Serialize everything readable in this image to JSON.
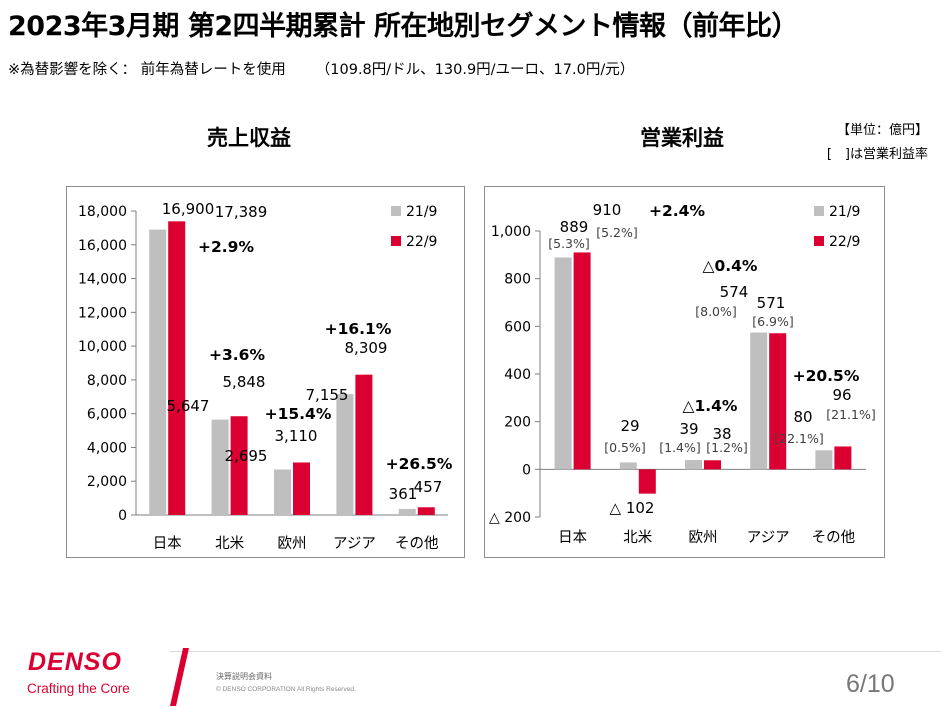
{
  "header": {
    "title": "2023年3月期 第2四半期累計 所在地別セグメント情報（前年比）",
    "subtitle": "※為替影響を除く：  前年為替レートを使用",
    "rates": "（109.8円/ドル、130.9円/ユーロ、17.0円/元）"
  },
  "unit_note": {
    "unit": "【単位：億円】",
    "bracket_note": "[　]は営業利益率"
  },
  "colors": {
    "prior": "#bfbfbf",
    "current": "#dc0032"
  },
  "chart_data": [
    {
      "type": "bar",
      "title": "売上収益",
      "categories": [
        "日本",
        "北米",
        "欧州",
        "アジア",
        "その他"
      ],
      "series": [
        {
          "name": "21/9",
          "values": [
            16900,
            5647,
            2695,
            7155,
            361
          ],
          "labels": [
            "16,900",
            "5,647",
            "2,695",
            "7,155",
            "361"
          ]
        },
        {
          "name": "22/9",
          "values": [
            17389,
            5848,
            3110,
            8309,
            457
          ],
          "labels": [
            "17,389",
            "5,848",
            "3,110",
            "8,309",
            "457"
          ]
        }
      ],
      "growth": [
        "+2.9%",
        "+3.6%",
        "+15.4%",
        "+16.1%",
        "+26.5%"
      ],
      "ylim": [
        0,
        18000
      ],
      "yticks": [
        0,
        2000,
        4000,
        6000,
        8000,
        10000,
        12000,
        14000,
        16000,
        18000
      ],
      "ytick_labels": [
        "0",
        "2,000",
        "4,000",
        "6,000",
        "8,000",
        "10,000",
        "12,000",
        "14,000",
        "16,000",
        "18,000"
      ],
      "legend_position": "top-right"
    },
    {
      "type": "bar",
      "title": "営業利益",
      "categories": [
        "日本",
        "北米",
        "欧州",
        "アジア",
        "その他"
      ],
      "series": [
        {
          "name": "21/9",
          "values": [
            889,
            29,
            39,
            574,
            80
          ],
          "labels": [
            "889",
            "29",
            "39",
            "574",
            "80"
          ],
          "margins": [
            "[5.3%]",
            "[0.5%]",
            "[1.4%]",
            "[8.0%]",
            "[22.1%]"
          ]
        },
        {
          "name": "22/9",
          "values": [
            910,
            -102,
            38,
            571,
            96
          ],
          "labels": [
            "910",
            "△ 102",
            "38",
            "571",
            "96"
          ],
          "margins": [
            "[5.2%]",
            "",
            "[1.2%]",
            "[6.9%]",
            "[21.1%]"
          ]
        }
      ],
      "growth": [
        "+2.4%",
        "",
        "△1.4%",
        "△0.4%",
        "+20.5%"
      ],
      "ylim": [
        -200,
        1000
      ],
      "yticks": [
        -200,
        0,
        200,
        400,
        600,
        800,
        1000
      ],
      "ytick_labels": [
        "△ 200",
        "0",
        "200",
        "400",
        "600",
        "800",
        "1,000"
      ],
      "legend_position": "top-right"
    }
  ],
  "footer": {
    "logo": "DENSO",
    "tagline": "Crafting the Core",
    "doc_label": "決算説明会資料",
    "copyright": "© DENSO CORPORATION All Rights Reserved.",
    "page": "6/10"
  }
}
